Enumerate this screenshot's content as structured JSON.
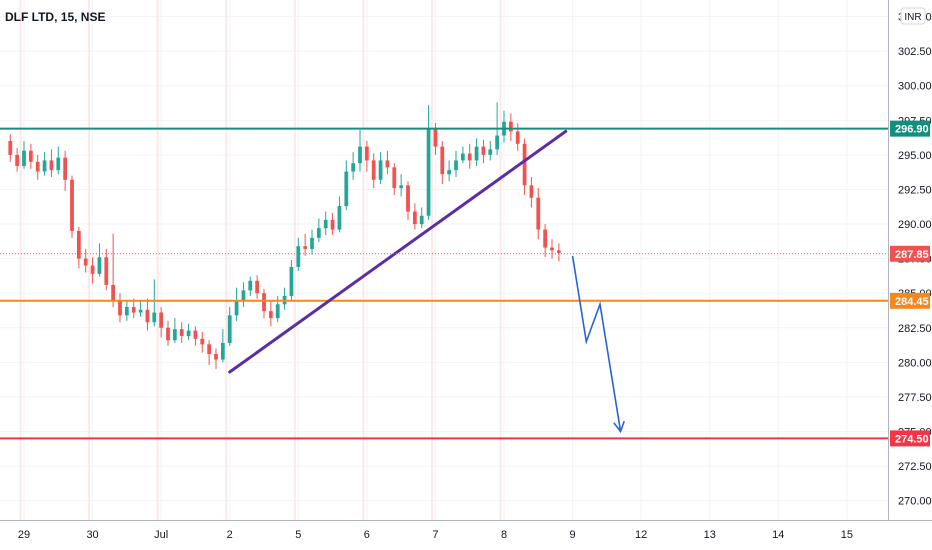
{
  "header": {
    "symbol_title": "DLF LTD, 15, NSE",
    "currency": "INR"
  },
  "colors": {
    "up": "#26a69a",
    "down": "#ef5350",
    "resistance": "#138f7e",
    "support": "#f5871f",
    "target": "#f23645",
    "trendline": "#5b2ea6",
    "projection": "#2a62d4",
    "last_price": "#ef5350"
  },
  "chart_data": {
    "type": "candlestick",
    "title": "DLF LTD, 15, NSE",
    "ylim": [
      268.6,
      306.2
    ],
    "y_ticks": [
      "270.00",
      "272.50",
      "275.00",
      "277.50",
      "280.00",
      "282.50",
      "285.00",
      "287.50",
      "290.00",
      "292.50",
      "295.00",
      "297.50",
      "300.00",
      "302.50",
      "305.00"
    ],
    "x_ticks": [
      {
        "label": "29",
        "i": 2
      },
      {
        "label": "30",
        "i": 12
      },
      {
        "label": "Jul",
        "i": 22
      },
      {
        "label": "2",
        "i": 32
      },
      {
        "label": "5",
        "i": 42
      },
      {
        "label": "6",
        "i": 52
      },
      {
        "label": "7",
        "i": 62
      },
      {
        "label": "8",
        "i": 72
      },
      {
        "label": "9",
        "i": 82
      },
      {
        "label": "12",
        "i": 92
      },
      {
        "label": "13",
        "i": 102
      },
      {
        "label": "14",
        "i": 112
      },
      {
        "label": "15",
        "i": 122
      }
    ],
    "session_starts": [
      2,
      12,
      22,
      32,
      42,
      52,
      62,
      72
    ],
    "x_range": [
      -1.5,
      128
    ],
    "grid": true,
    "candles": [
      [
        296,
        295,
        296.5,
        294.5
      ],
      [
        295,
        294.2,
        295.5,
        293.8
      ],
      [
        294.2,
        295.3,
        296,
        294
      ],
      [
        295.3,
        294.5,
        295.8,
        294
      ],
      [
        294.5,
        293.8,
        295,
        293.2
      ],
      [
        293.8,
        294.6,
        295.2,
        293.5
      ],
      [
        294.6,
        293.9,
        295.4,
        293.4
      ],
      [
        293.9,
        294.8,
        295.6,
        293.6
      ],
      [
        294.8,
        293.2,
        295.3,
        292.4
      ],
      [
        293.2,
        289.5,
        293.5,
        289
      ],
      [
        289.5,
        287.5,
        289.8,
        286.8
      ],
      [
        287.5,
        287,
        288.2,
        286.5
      ],
      [
        287,
        286.4,
        287.6,
        285.7
      ],
      [
        286.4,
        287.6,
        288.6,
        286.2
      ],
      [
        287.6,
        285.6,
        288.2,
        285.2
      ],
      [
        285.6,
        284.5,
        289.3,
        284
      ],
      [
        284.5,
        283.4,
        285,
        282.9
      ],
      [
        283.4,
        284,
        284.4,
        283
      ],
      [
        284,
        283.6,
        284.6,
        283.2
      ],
      [
        283.6,
        283.8,
        284.4,
        283.3
      ],
      [
        283.8,
        282.9,
        284.6,
        282.3
      ],
      [
        282.9,
        283.6,
        286,
        282.6
      ],
      [
        283.6,
        282.5,
        284,
        281.8
      ],
      [
        282.5,
        281.6,
        283,
        281.2
      ],
      [
        281.6,
        282.4,
        283.2,
        281.4
      ],
      [
        282.4,
        281.9,
        282.9,
        281.4
      ],
      [
        281.9,
        282.3,
        282.8,
        281.6
      ],
      [
        282.3,
        281.7,
        282.6,
        281.2
      ],
      [
        281.7,
        281.3,
        282.2,
        280.7
      ],
      [
        281.3,
        280.6,
        281.6,
        279.8
      ],
      [
        280.6,
        280.2,
        281,
        279.5
      ],
      [
        280.2,
        281.4,
        282.4,
        280
      ],
      [
        281.4,
        283.4,
        284,
        281.2
      ],
      [
        283.4,
        284.4,
        285.4,
        283
      ],
      [
        284.4,
        285.2,
        285.8,
        284
      ],
      [
        285.2,
        285.9,
        286.2,
        284.8
      ],
      [
        285.9,
        285,
        286.3,
        284.6
      ],
      [
        285,
        283.7,
        285.3,
        283.2
      ],
      [
        283.7,
        283.2,
        284.4,
        282.6
      ],
      [
        283.2,
        284.2,
        284.8,
        282.9
      ],
      [
        284.2,
        284.8,
        285.4,
        283.8
      ],
      [
        284.8,
        286.9,
        287.4,
        284.4
      ],
      [
        286.9,
        288.4,
        289,
        286.6
      ],
      [
        288.4,
        288.2,
        289.3,
        287.7
      ],
      [
        288.2,
        289,
        289.6,
        287.8
      ],
      [
        289,
        289.7,
        290.4,
        288.7
      ],
      [
        289.7,
        290.3,
        290.9,
        289.2
      ],
      [
        290.3,
        289.6,
        290.8,
        289.2
      ],
      [
        289.6,
        291.3,
        292,
        289.4
      ],
      [
        291.3,
        293.8,
        294.6,
        291
      ],
      [
        293.8,
        294.4,
        295.2,
        293.2
      ],
      [
        294.4,
        295.6,
        296.8,
        293.8
      ],
      [
        295.6,
        294.6,
        296,
        293.8
      ],
      [
        294.6,
        293.2,
        295.1,
        292.6
      ],
      [
        293.2,
        294.6,
        295.2,
        292.9
      ],
      [
        294.6,
        294.1,
        295.3,
        293.6
      ],
      [
        294.1,
        292.6,
        294.4,
        292.1
      ],
      [
        292.6,
        292.8,
        293.6,
        292
      ],
      [
        292.8,
        290.9,
        293.1,
        290.3
      ],
      [
        290.9,
        290,
        291.5,
        289.6
      ],
      [
        290,
        290.6,
        291.2,
        289.7
      ],
      [
        290.6,
        296.9,
        298.6,
        290.3
      ],
      [
        296.9,
        295.6,
        297.3,
        295
      ],
      [
        295.6,
        293.6,
        296,
        292.9
      ],
      [
        293.6,
        293.9,
        294.6,
        293.1
      ],
      [
        293.9,
        294.6,
        295.3,
        293.4
      ],
      [
        294.6,
        295.1,
        295.6,
        294.4
      ],
      [
        295.1,
        294.6,
        295.8,
        294
      ],
      [
        294.6,
        295.6,
        296.2,
        294.2
      ],
      [
        295.6,
        295,
        296.1,
        294.4
      ],
      [
        295,
        295.4,
        296,
        294.6
      ],
      [
        295.4,
        296.4,
        298.8,
        295
      ],
      [
        296.4,
        297.4,
        298.2,
        295.9
      ],
      [
        297.4,
        296.7,
        298,
        296
      ],
      [
        296.7,
        295.8,
        297.3,
        295.3
      ],
      [
        295.8,
        292.8,
        296.2,
        292.1
      ],
      [
        292.8,
        291.9,
        293.4,
        291.2
      ],
      [
        291.9,
        289.6,
        292.6,
        288.9
      ],
      [
        289.6,
        288.3,
        290,
        287.6
      ],
      [
        288.3,
        288.1,
        288.9,
        287.5
      ],
      [
        288.1,
        287.9,
        288.6,
        287.3
      ]
    ],
    "last_price": "287.85",
    "annotations": {
      "horizontal_levels": [
        {
          "name": "resistance",
          "value": 296.9,
          "label": "296.90"
        },
        {
          "name": "support",
          "value": 284.45,
          "label": "284.45"
        },
        {
          "name": "target",
          "value": 274.5,
          "label": "274.50"
        }
      ],
      "trendline": {
        "from": [
          32,
          279.3
        ],
        "to": [
          81,
          296.7
        ]
      },
      "projection_path": [
        [
          82,
          287.7
        ],
        [
          84,
          281.5
        ],
        [
          86,
          284.2
        ],
        [
          89,
          275.0
        ]
      ]
    }
  }
}
